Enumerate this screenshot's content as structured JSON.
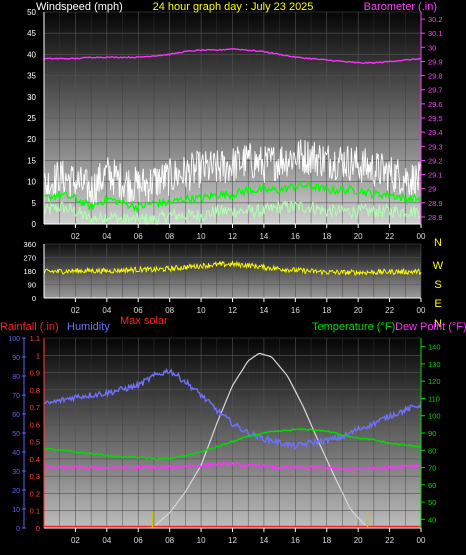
{
  "chart_data": [
    {
      "type": "line",
      "title": "24 hour graph day : July 23 2025",
      "ylabel_left": "Windspeed (mph)",
      "ylabel_right": "Barometer (.in)",
      "x_ticks": [
        "02",
        "04",
        "06",
        "08",
        "10",
        "12",
        "14",
        "16",
        "18",
        "20",
        "22",
        "00"
      ],
      "y_left_ticks": [
        "0",
        "5",
        "10",
        "15",
        "20",
        "25",
        "30",
        "35",
        "40",
        "45",
        "50"
      ],
      "y_left_range": [
        0,
        50
      ],
      "y_right_ticks": [
        "28.8",
        "28.9",
        "29",
        "29.1",
        "29.2",
        "29.3",
        "29.4",
        "29.5",
        "29.6",
        "29.7",
        "29.8",
        "29.9",
        "30",
        "30.1",
        "30.2"
      ],
      "y_right_range": [
        28.75,
        30.25
      ],
      "grid": true,
      "colors": {
        "barometer": "#ff30ff",
        "gust": "#ffffff",
        "avg": "#00ff00",
        "lull": "#b0ffb0",
        "title": "#ffff00",
        "left_label": "#ffffff",
        "right_label": "#ff40ff",
        "axis": "#ffffff"
      },
      "series": [
        {
          "key": "barometer",
          "axis": "right",
          "x": [
            0,
            1,
            2,
            3,
            4,
            5,
            6,
            7,
            8,
            9,
            10,
            11,
            12,
            13,
            14,
            15,
            16,
            17,
            18,
            19,
            20,
            21,
            22,
            23,
            24
          ],
          "values": [
            29.92,
            29.92,
            29.92,
            29.93,
            29.93,
            29.93,
            29.93,
            29.94,
            29.95,
            29.97,
            29.98,
            29.98,
            29.99,
            29.98,
            29.97,
            29.95,
            29.93,
            29.92,
            29.91,
            29.9,
            29.89,
            29.89,
            29.9,
            29.91,
            29.92
          ]
        },
        {
          "key": "gust",
          "axis": "left",
          "x": [
            0,
            1,
            2,
            3,
            4,
            5,
            6,
            7,
            8,
            9,
            10,
            11,
            12,
            13,
            14,
            15,
            16,
            17,
            18,
            19,
            20,
            21,
            22,
            23,
            24
          ],
          "values": [
            9,
            11,
            10,
            8,
            12,
            10,
            9,
            10,
            11,
            12,
            13,
            13,
            14,
            15,
            14,
            15,
            16,
            16,
            15,
            15,
            14,
            13,
            12,
            11,
            10
          ]
        },
        {
          "key": "avg",
          "axis": "left",
          "x": [
            0,
            1,
            2,
            3,
            4,
            5,
            6,
            7,
            8,
            9,
            10,
            11,
            12,
            13,
            14,
            15,
            16,
            17,
            18,
            19,
            20,
            21,
            22,
            23,
            24
          ],
          "values": [
            6,
            7,
            6,
            4,
            6,
            5,
            4,
            5,
            5,
            6,
            6,
            7,
            7,
            8,
            8,
            8,
            9,
            9,
            8,
            8,
            8,
            7,
            7,
            6,
            6
          ]
        },
        {
          "key": "lull",
          "axis": "left",
          "x": [
            0,
            1,
            2,
            3,
            4,
            5,
            6,
            7,
            8,
            9,
            10,
            11,
            12,
            13,
            14,
            15,
            16,
            17,
            18,
            19,
            20,
            21,
            22,
            23,
            24
          ],
          "values": [
            3,
            4,
            3,
            1,
            2,
            1,
            1,
            1,
            2,
            2,
            2,
            3,
            3,
            3,
            3,
            4,
            4,
            4,
            3,
            3,
            3,
            3,
            3,
            3,
            3
          ]
        }
      ]
    },
    {
      "type": "line",
      "y_left_ticks": [
        "360",
        "270",
        "180",
        "90",
        "0"
      ],
      "y_left_range": [
        0,
        360
      ],
      "compass_labels": [
        "N",
        "W",
        "S",
        "E",
        "N"
      ],
      "x_ticks": [
        "02",
        "04",
        "06",
        "08",
        "10",
        "12",
        "14",
        "16",
        "18",
        "20",
        "22",
        "00"
      ],
      "colors": {
        "direction": "#ffff00",
        "compass": "#ffff00",
        "axis": "#ffffff"
      },
      "series": [
        {
          "key": "direction",
          "x": [
            0,
            1,
            2,
            3,
            4,
            5,
            6,
            7,
            8,
            9,
            10,
            11,
            12,
            13,
            14,
            15,
            16,
            17,
            18,
            19,
            20,
            21,
            22,
            23,
            24
          ],
          "values": [
            175,
            178,
            180,
            182,
            180,
            185,
            190,
            188,
            195,
            205,
            215,
            222,
            225,
            218,
            205,
            195,
            185,
            178,
            172,
            170,
            170,
            172,
            175,
            175,
            175
          ]
        }
      ]
    },
    {
      "type": "line",
      "label_max_solar": "Max solar",
      "ylabel_left_1": "Rainfall (.in)",
      "ylabel_left_2": "Humidity",
      "ylabel_right_1": "Temperature (°F)",
      "ylabel_right_2": "Dew Point (°F)",
      "y_humidity_ticks": [
        "0",
        "10",
        "20",
        "30",
        "40",
        "50",
        "60",
        "70",
        "80",
        "90",
        "100"
      ],
      "y_humidity_range": [
        0,
        100
      ],
      "y_rain_ticks": [
        "0",
        "0.1",
        "0.2",
        "0.3",
        "0.4",
        "0.5",
        "0.6",
        "0.7",
        "0.8",
        "0.9",
        "1",
        "1.1"
      ],
      "y_rain_range": [
        0,
        1.1
      ],
      "y_temp_ticks": [
        "40",
        "50",
        "60",
        "70",
        "80",
        "90",
        "100",
        "110",
        "120",
        "130",
        "140"
      ],
      "y_temp_range": [
        35,
        145
      ],
      "x_ticks": [
        "02",
        "04",
        "06",
        "08",
        "10",
        "12",
        "14",
        "16",
        "18",
        "20",
        "22",
        "00"
      ],
      "colors": {
        "rain": "#ff2020",
        "humidity": "#7070ff",
        "temp": "#00dd00",
        "dew": "#ff30ff",
        "solar": "#d8d8d8",
        "sun_marker": "#c8c800",
        "axis": "#ffffff",
        "rain_axis": "#ff4040",
        "humidity_axis": "#6060ff"
      },
      "sunrise_hour": 6.9,
      "sunset_hour": 20.6,
      "series": [
        {
          "key": "humidity",
          "axis": "humidity",
          "x": [
            0,
            1,
            2,
            3,
            4,
            5,
            6,
            7,
            8,
            9,
            10,
            11,
            12,
            13,
            14,
            15,
            16,
            17,
            18,
            19,
            20,
            21,
            22,
            23,
            24
          ],
          "values": [
            65,
            67,
            69,
            70,
            71,
            73,
            75,
            80,
            83,
            77,
            70,
            62,
            55,
            50,
            47,
            45,
            43,
            45,
            46,
            48,
            52,
            55,
            59,
            62,
            65
          ]
        },
        {
          "key": "temp",
          "axis": "temp",
          "x": [
            0,
            1,
            2,
            3,
            4,
            5,
            6,
            7,
            8,
            9,
            10,
            11,
            12,
            13,
            14,
            15,
            16,
            17,
            18,
            19,
            20,
            21,
            22,
            23,
            24
          ],
          "values": [
            81,
            80,
            79,
            78,
            77,
            76,
            76,
            75,
            75,
            77,
            79,
            82,
            85,
            88,
            90,
            91,
            92,
            92,
            91,
            89,
            87,
            86,
            84,
            83,
            82
          ]
        },
        {
          "key": "dew",
          "axis": "temp",
          "x": [
            0,
            1,
            2,
            3,
            4,
            5,
            6,
            7,
            8,
            9,
            10,
            11,
            12,
            13,
            14,
            15,
            16,
            17,
            18,
            19,
            20,
            21,
            22,
            23,
            24
          ],
          "values": [
            70,
            70,
            70,
            70,
            70,
            70,
            70,
            70,
            70,
            71,
            71,
            72,
            72,
            71,
            71,
            70,
            70,
            70,
            70,
            69,
            69,
            70,
            70,
            71,
            71
          ]
        },
        {
          "key": "solar",
          "axis": "humidity",
          "x": [
            6.9,
            8,
            9,
            10,
            11,
            12,
            13,
            13.7,
            14.5,
            15.5,
            16.5,
            17.5,
            18.5,
            19.5,
            20.6
          ],
          "values": [
            0,
            8,
            19,
            33,
            55,
            75,
            88,
            92,
            90,
            80,
            64,
            45,
            27,
            10,
            0
          ]
        },
        {
          "key": "rain",
          "axis": "rain",
          "x": [
            0,
            24
          ],
          "values": [
            0,
            0
          ]
        }
      ]
    }
  ]
}
